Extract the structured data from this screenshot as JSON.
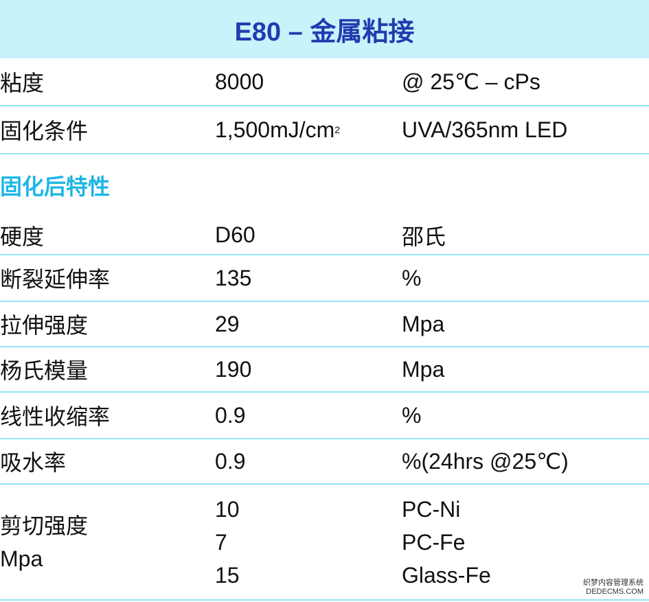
{
  "header": {
    "title": "E80 – 金属粘接"
  },
  "table": {
    "rows": [
      [
        "粘度",
        "8000",
        "@ 25℃ – cPs"
      ],
      [
        "固化条件",
        {
          "value": "1,500mJ/cm",
          "superscript": "2"
        },
        "UVA/365nm LED"
      ]
    ]
  },
  "section": {
    "title": "固化后特性",
    "rows": [
      [
        "硬度",
        "D60",
        "邵氏"
      ],
      [
        "断裂延伸率",
        "135",
        "%"
      ],
      [
        "拉伸强度",
        "29",
        "Mpa"
      ],
      [
        "杨氏模量",
        "190",
        "Mpa"
      ],
      [
        "线性收缩率",
        "0.9",
        "%"
      ],
      [
        "吸水率",
        "0.9",
        "%(24hrs @25℃)"
      ]
    ],
    "shear": {
      "label": [
        "剪切强度",
        "Mpa"
      ],
      "values": [
        "10",
        "7",
        "15"
      ],
      "units": [
        "PC-Ni",
        "PC-Fe",
        "Glass-Fe"
      ]
    }
  },
  "watermark": {
    "line1": "织梦内容管理系统",
    "line2": "DEDECMS.COM"
  }
}
